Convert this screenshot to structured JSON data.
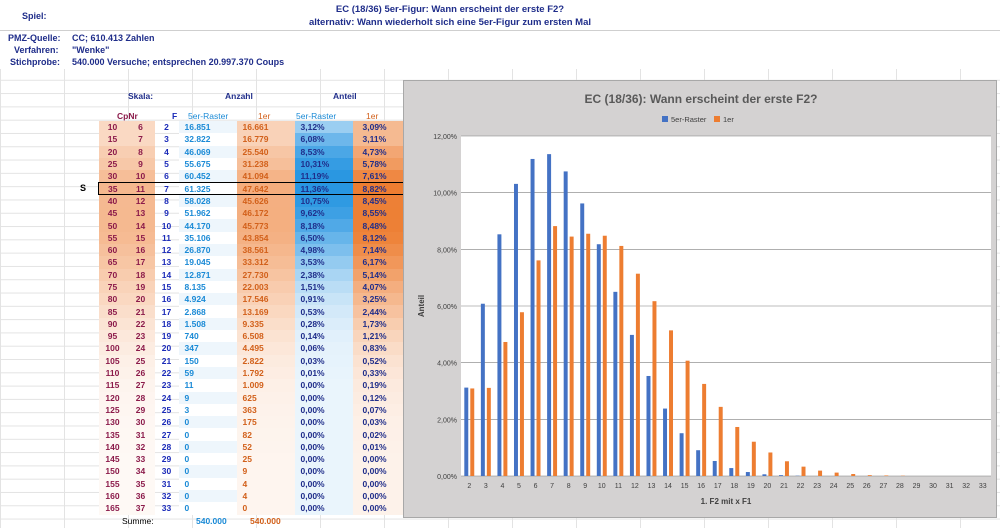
{
  "header": {
    "spiel_label": "Spiel:",
    "title_line1": "EC (18/36) 5er-Figur: Wann erscheint der erste F2?",
    "title_line2": "alternativ: Wann wiederholt sich eine 5er-Figur zum ersten Mal"
  },
  "meta": {
    "quelle_label": "PMZ-Quelle:",
    "quelle_value": "CC; 610.413 Zahlen",
    "verfahren_label": "Verfahren:",
    "verfahren_value": "\"Wenke\"",
    "stichprobe_label": "Stichprobe:",
    "stichprobe_value": "540.000 Versuche; entsprechen 20.997.370 Coups"
  },
  "table": {
    "skala_label": "Skala:",
    "anzahl_label": "Anzahl",
    "anteil_label": "Anteil",
    "cpnr_label": "CpNr",
    "f_label": "F",
    "sub_5er": "5er-Raster",
    "sub_1er": "1er",
    "selected_marker": "S",
    "summe_label": "Summe:",
    "summe_5er": "540.000",
    "summe_1er": "540.000",
    "rows": [
      [
        "10",
        "6",
        "2",
        "16.851",
        "16.661",
        "3,12%",
        "3,09%"
      ],
      [
        "15",
        "7",
        "3",
        "32.822",
        "16.779",
        "6,08%",
        "3,11%"
      ],
      [
        "20",
        "8",
        "4",
        "46.069",
        "25.540",
        "8,53%",
        "4,73%"
      ],
      [
        "25",
        "9",
        "5",
        "55.675",
        "31.238",
        "10,31%",
        "5,78%"
      ],
      [
        "30",
        "10",
        "6",
        "60.452",
        "41.094",
        "11,19%",
        "7,61%"
      ],
      [
        "35",
        "11",
        "7",
        "61.325",
        "47.642",
        "11,36%",
        "8,82%"
      ],
      [
        "40",
        "12",
        "8",
        "58.028",
        "45.626",
        "10,75%",
        "8,45%"
      ],
      [
        "45",
        "13",
        "9",
        "51.962",
        "46.172",
        "9,62%",
        "8,55%"
      ],
      [
        "50",
        "14",
        "10",
        "44.170",
        "45.773",
        "8,18%",
        "8,48%"
      ],
      [
        "55",
        "15",
        "11",
        "35.106",
        "43.854",
        "6,50%",
        "8,12%"
      ],
      [
        "60",
        "16",
        "12",
        "26.870",
        "38.561",
        "4,98%",
        "7,14%"
      ],
      [
        "65",
        "17",
        "13",
        "19.045",
        "33.312",
        "3,53%",
        "6,17%"
      ],
      [
        "70",
        "18",
        "14",
        "12.871",
        "27.730",
        "2,38%",
        "5,14%"
      ],
      [
        "75",
        "19",
        "15",
        "8.135",
        "22.003",
        "1,51%",
        "4,07%"
      ],
      [
        "80",
        "20",
        "16",
        "4.924",
        "17.546",
        "0,91%",
        "3,25%"
      ],
      [
        "85",
        "21",
        "17",
        "2.868",
        "13.169",
        "0,53%",
        "2,44%"
      ],
      [
        "90",
        "22",
        "18",
        "1.508",
        "9.335",
        "0,28%",
        "1,73%"
      ],
      [
        "95",
        "23",
        "19",
        "740",
        "6.508",
        "0,14%",
        "1,21%"
      ],
      [
        "100",
        "24",
        "20",
        "347",
        "4.495",
        "0,06%",
        "0,83%"
      ],
      [
        "105",
        "25",
        "21",
        "150",
        "2.822",
        "0,03%",
        "0,52%"
      ],
      [
        "110",
        "26",
        "22",
        "59",
        "1.792",
        "0,01%",
        "0,33%"
      ],
      [
        "115",
        "27",
        "23",
        "11",
        "1.009",
        "0,00%",
        "0,19%"
      ],
      [
        "120",
        "28",
        "24",
        "9",
        "625",
        "0,00%",
        "0,12%"
      ],
      [
        "125",
        "29",
        "25",
        "3",
        "363",
        "0,00%",
        "0,07%"
      ],
      [
        "130",
        "30",
        "26",
        "0",
        "175",
        "0,00%",
        "0,03%"
      ],
      [
        "135",
        "31",
        "27",
        "0",
        "82",
        "0,00%",
        "0,02%"
      ],
      [
        "140",
        "32",
        "28",
        "0",
        "52",
        "0,00%",
        "0,01%"
      ],
      [
        "145",
        "33",
        "29",
        "0",
        "25",
        "0,00%",
        "0,00%"
      ],
      [
        "150",
        "34",
        "30",
        "0",
        "9",
        "0,00%",
        "0,00%"
      ],
      [
        "155",
        "35",
        "31",
        "0",
        "4",
        "0,00%",
        "0,00%"
      ],
      [
        "160",
        "36",
        "32",
        "0",
        "4",
        "0,00%",
        "0,00%"
      ],
      [
        "165",
        "37",
        "33",
        "0",
        "0",
        "0,00%",
        "0,00%"
      ]
    ]
  },
  "colors": {
    "series1": "#4472c4",
    "series2": "#ed7d31",
    "plot_bg": "#ffffff",
    "chart_bg": "#d4d2d2",
    "selected_row_1": "#1a8ad6",
    "selected_row_2": "#d2601a"
  },
  "chart_data": {
    "type": "bar",
    "title": "EC (18/36): Wann erscheint der erste F2?",
    "xlabel": "1. F2 mit x F1",
    "ylabel": "Anteil",
    "ylim": [
      0,
      12
    ],
    "yticks": [
      "0,00%",
      "2,00%",
      "4,00%",
      "6,00%",
      "8,00%",
      "10,00%",
      "12,00%"
    ],
    "categories": [
      "2",
      "3",
      "4",
      "5",
      "6",
      "7",
      "8",
      "9",
      "10",
      "11",
      "12",
      "13",
      "14",
      "15",
      "16",
      "17",
      "18",
      "19",
      "20",
      "21",
      "22",
      "23",
      "24",
      "25",
      "26",
      "27",
      "28",
      "29",
      "30",
      "31",
      "32",
      "33"
    ],
    "legend_position": "top",
    "series": [
      {
        "name": "5er-Raster",
        "values": [
          3.12,
          6.08,
          8.53,
          10.31,
          11.19,
          11.36,
          10.75,
          9.62,
          8.18,
          6.5,
          4.98,
          3.53,
          2.38,
          1.51,
          0.91,
          0.53,
          0.28,
          0.14,
          0.06,
          0.03,
          0.01,
          0,
          0,
          0,
          0,
          0,
          0,
          0,
          0,
          0,
          0,
          0
        ]
      },
      {
        "name": "1er",
        "values": [
          3.09,
          3.11,
          4.73,
          5.78,
          7.61,
          8.82,
          8.45,
          8.55,
          8.48,
          8.12,
          7.14,
          6.17,
          5.14,
          4.07,
          3.25,
          2.44,
          1.73,
          1.21,
          0.83,
          0.52,
          0.33,
          0.19,
          0.12,
          0.07,
          0.03,
          0.02,
          0.01,
          0,
          0,
          0,
          0,
          0
        ]
      }
    ]
  }
}
